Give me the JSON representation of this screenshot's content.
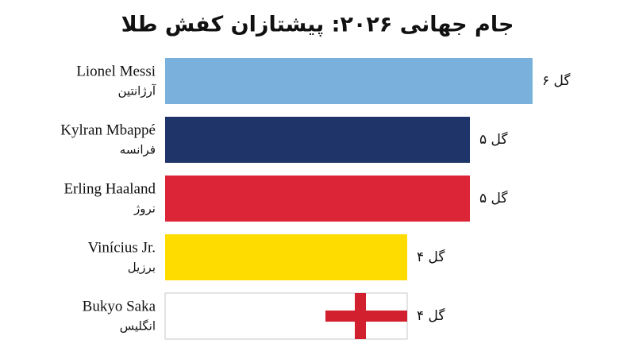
{
  "chart_data": {
    "type": "barh",
    "title": "جام جهانی ۲۰۲۶: پیشتازان کفش طلا",
    "categories": [
      "Lionel Messi",
      "Kylran Mbappé",
      "Erling Haaland",
      "Vinícius Jr.",
      "Bukyo Saka"
    ],
    "countries": [
      "آرژانتین",
      "فرانسه",
      "نروژ",
      "برزیل",
      "انگلیس"
    ],
    "values": [
      6,
      5,
      5,
      4,
      4
    ],
    "value_labels": [
      "۶ گل",
      "۵ گل",
      "۵ گل",
      "۴ گل",
      "۴ گل"
    ],
    "colors": [
      "#7ab1dc",
      "#1f3468",
      "#dc2638",
      "#fedc00",
      "#ffffff"
    ]
  }
}
